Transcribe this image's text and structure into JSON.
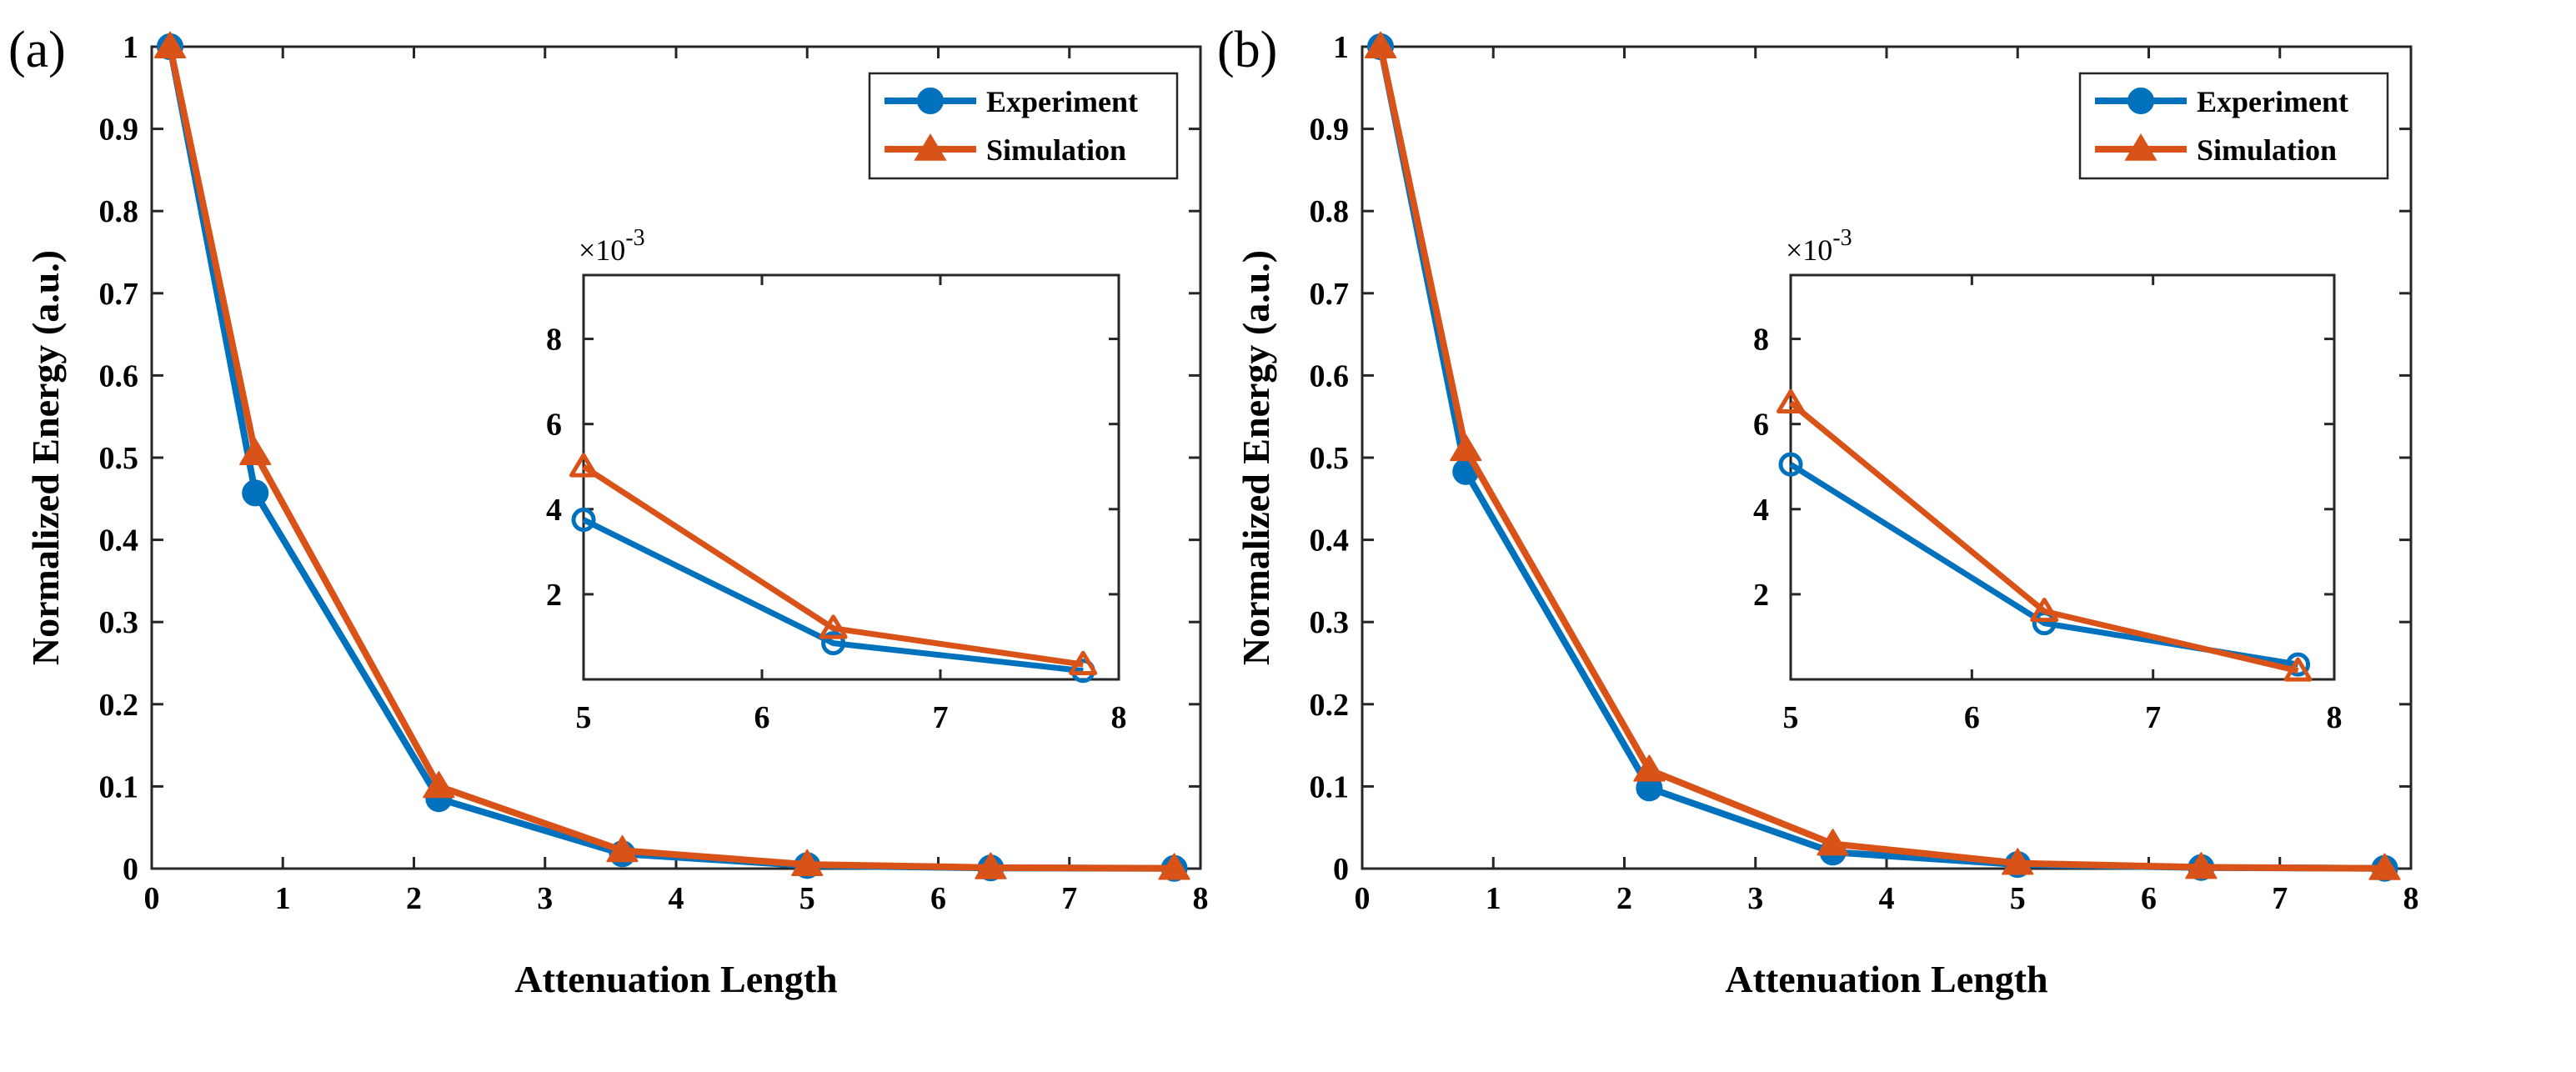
{
  "colors": {
    "experiment": "#0072BD",
    "simulation": "#D95319",
    "axis": "#262626"
  },
  "chart_data": [
    {
      "type": "line",
      "panel_label": "(a)",
      "xlabel": "Attenuation Length",
      "ylabel": "Normalized Energy (a.u.)",
      "xlim": [
        0,
        8
      ],
      "ylim": [
        0,
        1
      ],
      "xticks": [
        "0",
        "1",
        "2",
        "3",
        "4",
        "5",
        "6",
        "7",
        "8"
      ],
      "yticks": [
        "0",
        "0.1",
        "0.2",
        "0.3",
        "0.4",
        "0.5",
        "0.6",
        "0.7",
        "0.8",
        "0.9",
        "1"
      ],
      "legend_position": "top-right",
      "series": [
        {
          "name": "Experiment",
          "marker": "circle",
          "x": [
            0.14,
            0.79,
            2.19,
            3.59,
            5.0,
            6.4,
            7.8
          ],
          "values": [
            1.0,
            0.457,
            0.085,
            0.018,
            0.0037,
            0.0008,
            0.0002
          ]
        },
        {
          "name": "Simulation",
          "marker": "triangle",
          "x": [
            0.14,
            0.79,
            2.19,
            3.59,
            5.0,
            6.4,
            7.8
          ],
          "values": [
            1.0,
            0.505,
            0.1,
            0.022,
            0.005,
            0.0012,
            0.0004
          ]
        }
      ],
      "inset": {
        "multiplier": "×10",
        "exponent": "-3",
        "xlim": [
          5,
          8
        ],
        "ylim": [
          0,
          9.5
        ],
        "xticks": [
          "5",
          "6",
          "7",
          "8"
        ],
        "yticks": [
          "2",
          "4",
          "6",
          "8"
        ],
        "series": [
          {
            "name": "Experiment",
            "x": [
              5.0,
              6.4,
              7.8
            ],
            "values": [
              3.75,
              0.85,
              0.2
            ]
          },
          {
            "name": "Simulation",
            "x": [
              5.0,
              6.4,
              7.8
            ],
            "values": [
              5.0,
              1.2,
              0.35
            ]
          }
        ]
      }
    },
    {
      "type": "line",
      "panel_label": "(b)",
      "xlabel": "Attenuation Length",
      "ylabel": "Normalized Energy (a.u.)",
      "xlim": [
        0,
        8
      ],
      "ylim": [
        0,
        1
      ],
      "xticks": [
        "0",
        "1",
        "2",
        "3",
        "4",
        "5",
        "6",
        "7",
        "8"
      ],
      "yticks": [
        "0",
        "0.1",
        "0.2",
        "0.3",
        "0.4",
        "0.5",
        "0.6",
        "0.7",
        "0.8",
        "0.9",
        "1"
      ],
      "legend_position": "top-right",
      "series": [
        {
          "name": "Experiment",
          "marker": "circle",
          "x": [
            0.14,
            0.79,
            2.19,
            3.59,
            5.0,
            6.4,
            7.8
          ],
          "values": [
            1.0,
            0.483,
            0.098,
            0.02,
            0.005,
            0.0013,
            0.0003
          ]
        },
        {
          "name": "Simulation",
          "marker": "triangle",
          "x": [
            0.14,
            0.79,
            2.19,
            3.59,
            5.0,
            6.4,
            7.8
          ],
          "values": [
            1.0,
            0.51,
            0.12,
            0.03,
            0.0065,
            0.0016,
            0.0002
          ]
        }
      ],
      "inset": {
        "multiplier": "×10",
        "exponent": "-3",
        "xlim": [
          5,
          8
        ],
        "ylim": [
          0,
          9.5
        ],
        "xticks": [
          "5",
          "6",
          "7",
          "8"
        ],
        "yticks": [
          "2",
          "4",
          "6",
          "8"
        ],
        "series": [
          {
            "name": "Experiment",
            "x": [
              5.0,
              6.4,
              7.8
            ],
            "values": [
              5.05,
              1.32,
              0.35
            ]
          },
          {
            "name": "Simulation",
            "x": [
              5.0,
              6.4,
              7.8
            ],
            "values": [
              6.5,
              1.6,
              0.2
            ]
          }
        ]
      }
    }
  ]
}
